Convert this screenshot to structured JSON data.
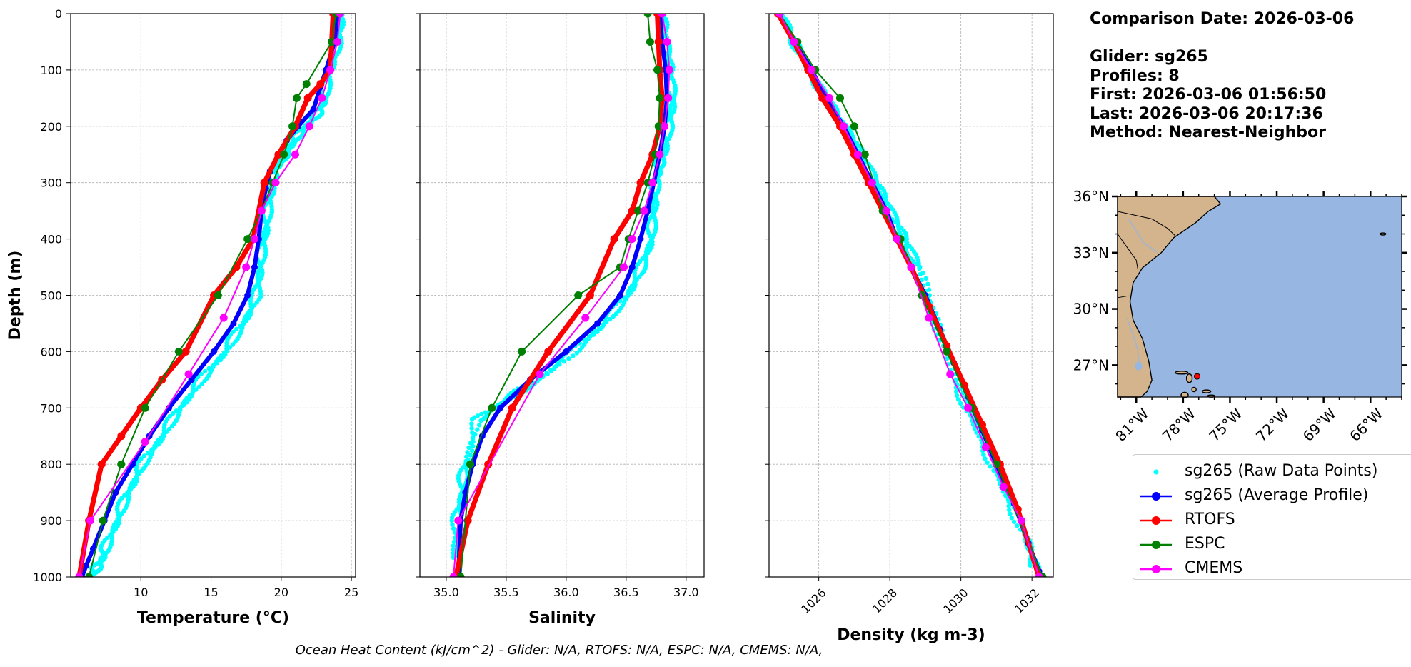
{
  "chart_data": [
    {
      "type": "line",
      "xlabel": "Temperature (°C)",
      "ylabel": "Depth (m)",
      "xlim": [
        5.0,
        25.3
      ],
      "ylim": [
        1000,
        0
      ],
      "xticks": [
        "10",
        "15",
        "20",
        "25"
      ],
      "yticks": [
        "0",
        "100",
        "200",
        "300",
        "400",
        "500",
        "600",
        "700",
        "800",
        "900",
        "1000"
      ],
      "grid": true,
      "series": [
        {
          "name": "sg265 (Raw Data Points)",
          "kind": "scatter",
          "color": "#00ffff",
          "x": [
            24.2,
            24.0,
            23.4,
            23.0,
            22.6,
            21.6,
            20.8,
            20.2,
            19.5,
            19.3,
            19.0,
            18.7,
            18.4,
            18.2,
            17.2,
            15.9,
            14.2,
            12.7,
            11.4,
            10.0,
            9.0,
            8.2,
            7.4,
            7.0,
            6.5
          ],
          "y": [
            0,
            50,
            100,
            150,
            175,
            200,
            225,
            250,
            275,
            300,
            350,
            400,
            450,
            500,
            550,
            600,
            650,
            700,
            750,
            800,
            850,
            900,
            950,
            975,
            995
          ]
        },
        {
          "name": "sg265 (Average Profile)",
          "kind": "line",
          "color": "#0000ff",
          "x": [
            24.0,
            23.8,
            23.2,
            22.8,
            22.3,
            21.2,
            20.4,
            19.8,
            19.2,
            18.9,
            18.6,
            18.4,
            18.1,
            17.6,
            16.6,
            15.2,
            13.6,
            12.0,
            10.6,
            9.4,
            8.2,
            7.4,
            6.6,
            6.1,
            5.8
          ],
          "y": [
            0,
            50,
            100,
            130,
            170,
            200,
            225,
            250,
            280,
            310,
            350,
            400,
            450,
            500,
            550,
            600,
            650,
            700,
            750,
            800,
            850,
            900,
            950,
            980,
            1000
          ]
        },
        {
          "name": "RTOFS",
          "kind": "line",
          "color": "#ff0000",
          "x": [
            23.7,
            23.6,
            23.5,
            22.8,
            21.9,
            21.0,
            19.8,
            18.8,
            18.0,
            16.8,
            15.2,
            13.2,
            11.5,
            10.0,
            8.6,
            7.2,
            6.3,
            5.6
          ],
          "y": [
            0,
            50,
            100,
            125,
            150,
            200,
            250,
            300,
            400,
            450,
            500,
            600,
            650,
            700,
            750,
            800,
            900,
            1000
          ]
        },
        {
          "name": "ESPC",
          "kind": "line",
          "color": "#008000",
          "x": [
            23.9,
            23.6,
            21.8,
            21.1,
            20.8,
            20.2,
            19.4,
            18.6,
            17.6,
            15.5,
            12.7,
            10.3,
            8.6,
            7.3,
            6.3
          ],
          "y": [
            0,
            50,
            125,
            150,
            200,
            250,
            300,
            350,
            400,
            500,
            600,
            700,
            800,
            900,
            1000
          ]
        },
        {
          "name": "CMEMS",
          "kind": "line",
          "color": "#ff00ff",
          "x": [
            24.2,
            24.0,
            23.5,
            22.9,
            22.0,
            21.0,
            19.6,
            18.6,
            18.1,
            17.5,
            15.9,
            13.4,
            10.3,
            6.4,
            5.6
          ],
          "y": [
            0,
            50,
            100,
            150,
            200,
            250,
            300,
            350,
            400,
            450,
            540,
            640,
            760,
            900,
            1000
          ]
        }
      ]
    },
    {
      "type": "line",
      "xlabel": "Salinity",
      "xlim": [
        34.78,
        37.15
      ],
      "ylim": [
        1000,
        0
      ],
      "xticks": [
        "35.0",
        "35.5",
        "36.0",
        "36.5",
        "37.0"
      ],
      "grid": true,
      "series": [
        {
          "name": "sg265 (Raw Data Points)",
          "kind": "scatter",
          "color": "#00ffff",
          "x": [
            36.8,
            36.82,
            36.86,
            36.88,
            36.85,
            36.8,
            36.76,
            36.74,
            36.72,
            36.7,
            36.62,
            36.5,
            36.3,
            36.05,
            35.75,
            35.45,
            35.25,
            35.15,
            35.12,
            35.08,
            35.05
          ],
          "y": [
            0,
            50,
            100,
            150,
            200,
            250,
            275,
            300,
            350,
            400,
            450,
            500,
            550,
            600,
            650,
            690,
            720,
            800,
            850,
            900,
            970
          ]
        },
        {
          "name": "sg265 (Average Profile)",
          "kind": "line",
          "color": "#0000ff",
          "x": [
            36.78,
            36.8,
            36.83,
            36.84,
            36.82,
            36.78,
            36.73,
            36.68,
            36.62,
            36.55,
            36.45,
            36.26,
            36.0,
            35.7,
            35.45,
            35.3,
            35.22,
            35.16,
            35.12,
            35.1
          ],
          "y": [
            0,
            50,
            100,
            150,
            200,
            250,
            300,
            350,
            400,
            450,
            500,
            550,
            600,
            650,
            700,
            750,
            800,
            850,
            900,
            1000
          ]
        },
        {
          "name": "RTOFS",
          "kind": "line",
          "color": "#ff0000",
          "x": [
            36.76,
            36.77,
            36.78,
            36.8,
            36.78,
            36.72,
            36.62,
            36.55,
            36.4,
            36.2,
            35.85,
            35.55,
            35.35,
            35.18,
            35.08
          ],
          "y": [
            0,
            50,
            100,
            150,
            200,
            250,
            300,
            350,
            400,
            500,
            600,
            700,
            800,
            900,
            1000
          ]
        },
        {
          "name": "ESPC",
          "kind": "line",
          "color": "#008000",
          "x": [
            36.68,
            36.7,
            36.76,
            36.78,
            36.77,
            36.74,
            36.68,
            36.6,
            36.52,
            36.45,
            36.1,
            35.63,
            35.38,
            35.2,
            35.12
          ],
          "y": [
            0,
            50,
            100,
            150,
            200,
            250,
            300,
            350,
            400,
            450,
            500,
            600,
            700,
            800,
            1000
          ]
        },
        {
          "name": "CMEMS",
          "kind": "line",
          "color": "#ff00ff",
          "x": [
            36.8,
            36.84,
            36.86,
            36.85,
            36.82,
            36.78,
            36.72,
            36.65,
            36.55,
            36.48,
            36.16,
            35.78,
            35.1,
            35.06
          ],
          "y": [
            0,
            50,
            100,
            150,
            200,
            250,
            300,
            350,
            400,
            450,
            540,
            640,
            900,
            1000
          ]
        }
      ]
    },
    {
      "type": "line",
      "xlabel": "Density (kg m-3)",
      "xlim": [
        1024.6,
        1032.6
      ],
      "ylim": [
        1000,
        0
      ],
      "xticks": [
        "1026",
        "1028",
        "1030",
        "1032"
      ],
      "grid": true,
      "series": [
        {
          "name": "sg265 (Raw Data Points)",
          "kind": "scatter",
          "color": "#00ffff",
          "x": [
            1024.9,
            1025.3,
            1025.7,
            1026.2,
            1026.7,
            1027.2,
            1027.6,
            1028.0,
            1028.4,
            1028.8,
            1029.3,
            1029.8,
            1030.3,
            1030.8,
            1031.3,
            1031.8,
            1032.1
          ],
          "y": [
            0,
            50,
            100,
            150,
            200,
            250,
            300,
            350,
            400,
            450,
            550,
            650,
            720,
            790,
            860,
            930,
            985
          ]
        },
        {
          "name": "sg265 (Average Profile)",
          "kind": "line",
          "color": "#0000ff",
          "x": [
            1024.85,
            1025.3,
            1025.8,
            1026.2,
            1026.7,
            1027.1,
            1027.5,
            1027.9,
            1028.2,
            1028.6,
            1029.0,
            1029.4,
            1029.8,
            1030.2,
            1030.6,
            1031.0,
            1031.5,
            1031.9,
            1032.2
          ],
          "y": [
            0,
            50,
            100,
            150,
            200,
            250,
            300,
            350,
            400,
            450,
            500,
            560,
            620,
            680,
            740,
            800,
            870,
            940,
            990
          ]
        },
        {
          "name": "RTOFS",
          "kind": "line",
          "color": "#ff0000",
          "x": [
            1024.85,
            1025.3,
            1025.7,
            1026.1,
            1026.6,
            1027.0,
            1027.4,
            1027.8,
            1028.2,
            1028.6,
            1029.1,
            1029.6,
            1030.1,
            1030.6,
            1031.1,
            1031.6,
            1032.2
          ],
          "y": [
            0,
            50,
            100,
            150,
            200,
            250,
            300,
            350,
            400,
            450,
            520,
            590,
            660,
            730,
            800,
            880,
            1000
          ]
        },
        {
          "name": "ESPC",
          "kind": "line",
          "color": "#008000",
          "x": [
            1024.9,
            1025.4,
            1025.9,
            1026.6,
            1027.0,
            1027.3,
            1027.8,
            1028.3,
            1028.9,
            1029.6,
            1030.3,
            1031.0,
            1032.3
          ],
          "y": [
            0,
            50,
            100,
            150,
            200,
            250,
            350,
            400,
            500,
            600,
            700,
            800,
            1000
          ]
        },
        {
          "name": "CMEMS",
          "kind": "line",
          "color": "#ff00ff",
          "x": [
            1024.9,
            1025.3,
            1025.8,
            1026.3,
            1026.7,
            1027.1,
            1027.5,
            1027.9,
            1028.2,
            1028.6,
            1029.1,
            1029.7,
            1030.2,
            1030.7,
            1031.2,
            1031.7,
            1032.2
          ],
          "y": [
            0,
            50,
            100,
            150,
            200,
            250,
            300,
            350,
            400,
            450,
            540,
            640,
            700,
            770,
            840,
            900,
            1000
          ]
        }
      ]
    }
  ],
  "info": {
    "comparison_date": "Comparison Date: 2026-03-06",
    "glider": "Glider: sg265",
    "profiles": "Profiles: 8",
    "first": "First: 2026-03-06 01:56:50",
    "last": "Last: 2026-03-06 20:17:36",
    "method": "Method: Nearest-Neighbor"
  },
  "map": {
    "lat_labels": [
      "36°N",
      "33°N",
      "30°N",
      "27°N"
    ],
    "lon_labels": [
      "81°W",
      "78°W",
      "75°W",
      "72°W",
      "69°W",
      "66°W"
    ],
    "ocean_color": "#97b6e1",
    "land_color": "#d3b48c",
    "glider_color": "#ff0000"
  },
  "legend": [
    {
      "label": "sg265 (Raw Data Points)",
      "color": "#00ffff",
      "kind": "scatter"
    },
    {
      "label": "sg265 (Average Profile)",
      "color": "#0000ff",
      "kind": "line"
    },
    {
      "label": "RTOFS",
      "color": "#ff0000",
      "kind": "line"
    },
    {
      "label": "ESPC",
      "color": "#008000",
      "kind": "line"
    },
    {
      "label": "CMEMS",
      "color": "#ff00ff",
      "kind": "line"
    }
  ],
  "footer": "Ocean Heat Content (kJ/cm^2) - Glider: N/A,  RTOFS: N/A,  ESPC: N/A,  CMEMS: N/A,"
}
